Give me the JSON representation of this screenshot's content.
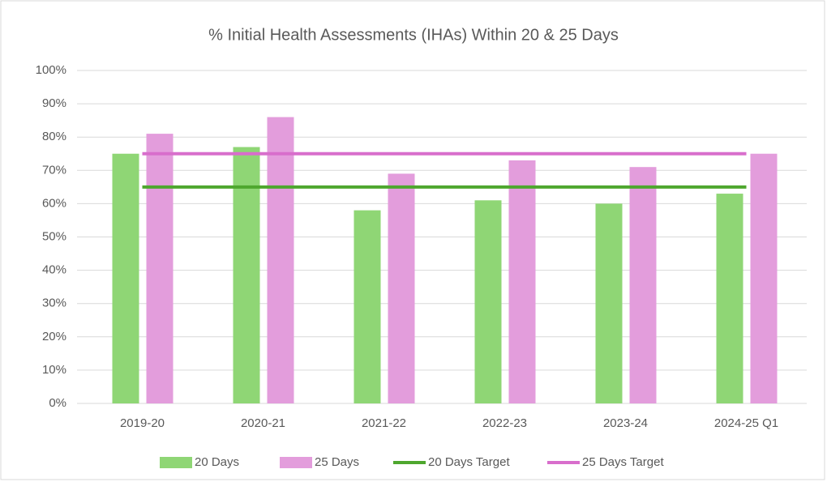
{
  "chart_data": {
    "type": "bar",
    "title": "% Initial Health Assessments (IHAs) Within 20 & 25 Days",
    "categories": [
      "2019-20",
      "2020-21",
      "2021-22",
      "2022-23",
      "2023-24",
      "2024-25 Q1"
    ],
    "series": [
      {
        "name": "20 Days",
        "color": "#8fd675",
        "type": "bar",
        "values": [
          75,
          77,
          58,
          61,
          60,
          63
        ]
      },
      {
        "name": "25 Days",
        "color": "#e39ddc",
        "type": "bar",
        "values": [
          81,
          86,
          69,
          73,
          71,
          75
        ]
      },
      {
        "name": "20 Days Target",
        "color": "#4ea72e",
        "type": "line",
        "values": [
          65,
          65,
          65,
          65,
          65,
          65
        ]
      },
      {
        "name": "25 Days Target",
        "color": "#d86ecc",
        "type": "line",
        "values": [
          75,
          75,
          75,
          75,
          75,
          75
        ]
      }
    ],
    "ylim": [
      0,
      100
    ],
    "yticks": [
      {
        "value": 0,
        "label": "0%"
      },
      {
        "value": 10,
        "label": "10%"
      },
      {
        "value": 20,
        "label": "20%"
      },
      {
        "value": 30,
        "label": "30%"
      },
      {
        "value": 40,
        "label": "40%"
      },
      {
        "value": 50,
        "label": "50%"
      },
      {
        "value": 60,
        "label": "60%"
      },
      {
        "value": 70,
        "label": "70%"
      },
      {
        "value": 80,
        "label": "80%"
      },
      {
        "value": 90,
        "label": "90%"
      },
      {
        "value": 100,
        "label": "100%"
      }
    ],
    "grid": true,
    "legend": "bottom"
  }
}
